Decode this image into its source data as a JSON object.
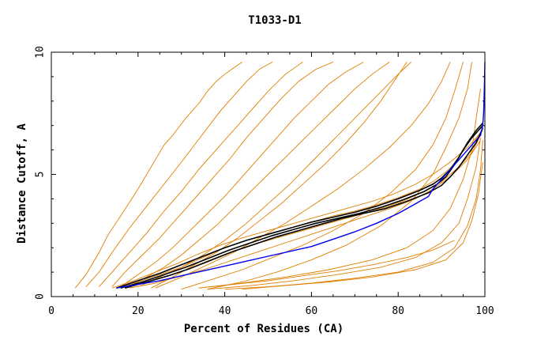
{
  "chart_data": {
    "type": "line",
    "title": "T1033-D1",
    "xlabel": "Percent of Residues (CA)",
    "ylabel": "Distance Cutoff, A",
    "xlim": [
      0,
      100
    ],
    "ylim": [
      0,
      10
    ],
    "xticks": [
      "0",
      "20",
      "40",
      "60",
      "80",
      "100"
    ],
    "yticks": [
      "0",
      "5",
      "10"
    ],
    "grid": false,
    "colors": {
      "orange": "#e07f00",
      "black": "#000000",
      "blue": "#0000ee"
    },
    "series": [
      {
        "name": "orange-fan-a",
        "color": "#e07f00",
        "x": [
          5.5,
          8,
          11,
          13,
          16,
          20,
          23,
          26,
          28,
          31,
          34,
          36,
          38,
          40,
          42,
          44
        ],
        "y": [
          0.35,
          0.9,
          1.8,
          2.5,
          3.3,
          4.4,
          5.3,
          6.2,
          6.6,
          7.3,
          7.9,
          8.4,
          8.8,
          9.1,
          9.35,
          9.6
        ]
      },
      {
        "name": "orange-fan-b",
        "color": "#e07f00",
        "x": [
          8,
          11,
          14,
          18,
          22,
          26,
          30,
          33,
          36,
          39,
          42,
          45,
          48,
          51
        ],
        "y": [
          0.4,
          1.0,
          1.8,
          2.8,
          3.7,
          4.6,
          5.5,
          6.2,
          6.9,
          7.6,
          8.2,
          8.8,
          9.3,
          9.6
        ]
      },
      {
        "name": "orange-fan-c",
        "color": "#e07f00",
        "x": [
          11,
          14,
          18,
          22,
          26,
          30,
          34,
          38,
          42,
          46,
          50,
          54,
          58
        ],
        "y": [
          0.4,
          1.0,
          1.8,
          2.6,
          3.5,
          4.3,
          5.2,
          6.0,
          6.8,
          7.6,
          8.4,
          9.1,
          9.6
        ]
      },
      {
        "name": "orange-fan-d",
        "color": "#e07f00",
        "x": [
          14,
          17,
          21,
          25,
          29,
          33,
          37,
          41,
          45,
          49,
          53,
          57,
          61,
          65
        ],
        "y": [
          0.4,
          1.0,
          1.7,
          2.4,
          3.2,
          4.0,
          4.8,
          5.6,
          6.5,
          7.3,
          8.1,
          8.8,
          9.3,
          9.6
        ]
      },
      {
        "name": "orange-fan-e",
        "color": "#e07f00",
        "x": [
          16,
          20,
          24,
          28,
          32,
          36,
          40,
          44,
          48,
          52,
          56,
          60,
          64,
          68,
          72
        ],
        "y": [
          0.4,
          0.9,
          1.4,
          2.0,
          2.7,
          3.4,
          4.1,
          4.9,
          5.7,
          6.5,
          7.3,
          8.0,
          8.7,
          9.2,
          9.6
        ]
      },
      {
        "name": "orange-fan-f",
        "color": "#e07f00",
        "x": [
          18,
          22,
          26,
          30,
          34,
          38,
          42,
          46,
          50,
          54,
          58,
          62,
          66,
          70,
          74,
          78
        ],
        "y": [
          0.4,
          0.8,
          1.2,
          1.7,
          2.3,
          2.9,
          3.6,
          4.3,
          5.0,
          5.7,
          6.4,
          7.1,
          7.8,
          8.5,
          9.1,
          9.6
        ]
      },
      {
        "name": "orange-fan-g",
        "color": "#e07f00",
        "x": [
          20,
          25,
          30,
          35,
          40,
          45,
          50,
          55,
          60,
          65,
          70,
          75,
          80,
          83
        ],
        "y": [
          0.4,
          0.8,
          1.2,
          1.7,
          2.3,
          3.0,
          3.8,
          4.6,
          5.5,
          6.4,
          7.3,
          8.2,
          9.1,
          9.6
        ]
      },
      {
        "name": "orange-fan-h",
        "color": "#e07f00",
        "x": [
          23,
          28,
          33,
          38,
          43,
          48,
          53,
          58,
          63,
          68,
          72,
          76,
          79,
          82
        ],
        "y": [
          0.35,
          0.8,
          1.3,
          1.8,
          2.4,
          3.1,
          3.8,
          4.6,
          5.4,
          6.3,
          7.1,
          8.0,
          8.8,
          9.6
        ]
      },
      {
        "name": "orange-mid-a",
        "color": "#e07f00",
        "x": [
          24,
          30,
          36,
          42,
          48,
          54,
          60,
          66,
          72,
          78,
          83,
          87,
          90,
          92
        ],
        "y": [
          0.35,
          0.8,
          1.3,
          1.8,
          2.4,
          3.0,
          3.7,
          4.4,
          5.2,
          6.1,
          7.0,
          7.9,
          8.8,
          9.6
        ]
      },
      {
        "name": "orange-mid-b",
        "color": "#e07f00",
        "x": [
          30,
          37,
          44,
          51,
          58,
          65,
          72,
          78,
          84,
          88,
          91,
          93,
          95
        ],
        "y": [
          0.3,
          0.7,
          1.1,
          1.6,
          2.1,
          2.7,
          3.4,
          4.2,
          5.2,
          6.2,
          7.3,
          8.4,
          9.6
        ]
      },
      {
        "name": "orange-mid-c",
        "color": "#e07f00",
        "x": [
          36,
          44,
          52,
          60,
          68,
          76,
          83,
          88,
          91,
          94,
          96,
          97
        ],
        "y": [
          0.3,
          0.6,
          1.0,
          1.5,
          2.1,
          2.9,
          3.9,
          5.0,
          6.1,
          7.3,
          8.5,
          9.6
        ]
      },
      {
        "name": "orange-low-a",
        "color": "#e07f00",
        "x": [
          34,
          44,
          54,
          64,
          74,
          82,
          88,
          92,
          95,
          97,
          98,
          99
        ],
        "y": [
          0.35,
          0.55,
          0.8,
          1.1,
          1.5,
          2.0,
          2.7,
          3.6,
          4.8,
          6.0,
          7.3,
          8.5
        ]
      },
      {
        "name": "orange-low-b",
        "color": "#e07f00",
        "x": [
          36,
          46,
          56,
          66,
          76,
          84,
          90,
          94,
          96,
          98,
          99
        ],
        "y": [
          0.3,
          0.45,
          0.65,
          0.9,
          1.2,
          1.6,
          2.2,
          3.0,
          4.0,
          5.3,
          6.5
        ]
      },
      {
        "name": "orange-low-c",
        "color": "#e07f00",
        "x": [
          40,
          50,
          60,
          70,
          80,
          88,
          93,
          96,
          98,
          99,
          99.5
        ],
        "y": [
          0.3,
          0.4,
          0.55,
          0.75,
          1.0,
          1.4,
          2.0,
          2.9,
          4.0,
          5.2,
          6.4
        ]
      },
      {
        "name": "orange-low-d",
        "color": "#e07f00",
        "x": [
          44,
          54,
          64,
          74,
          84,
          91,
          95,
          97,
          98.5,
          99.5
        ],
        "y": [
          0.3,
          0.45,
          0.6,
          0.8,
          1.1,
          1.5,
          2.2,
          3.1,
          4.2,
          5.5
        ]
      },
      {
        "name": "orange-low-e",
        "color": "#e07f00",
        "x": [
          34,
          42,
          50,
          58,
          66,
          74,
          82,
          88,
          93
        ],
        "y": [
          0.35,
          0.5,
          0.65,
          0.85,
          1.05,
          1.3,
          1.6,
          1.9,
          2.3
        ]
      },
      {
        "name": "orange-bundle-a",
        "color": "#e07f00",
        "x": [
          15,
          20,
          25,
          30,
          35,
          40,
          45,
          50,
          55,
          60,
          65,
          70,
          75,
          80,
          85,
          88,
          91,
          94,
          97,
          99.5
        ],
        "y": [
          0.35,
          0.6,
          0.9,
          1.2,
          1.6,
          2.0,
          2.3,
          2.55,
          2.8,
          3.05,
          3.3,
          3.5,
          3.75,
          4.05,
          4.4,
          4.7,
          5.1,
          5.6,
          6.2,
          6.8
        ]
      },
      {
        "name": "orange-bundle-b",
        "color": "#e07f00",
        "x": [
          16,
          21,
          26,
          31,
          36,
          41,
          46,
          51,
          56,
          61,
          66,
          71,
          76,
          81,
          86,
          90,
          94,
          97,
          99
        ],
        "y": [
          0.35,
          0.55,
          0.8,
          1.1,
          1.45,
          1.8,
          2.1,
          2.35,
          2.6,
          2.85,
          3.1,
          3.35,
          3.6,
          3.9,
          4.3,
          4.7,
          5.3,
          5.9,
          6.6
        ]
      },
      {
        "name": "orange-bundle-c",
        "color": "#e07f00",
        "x": [
          14,
          19,
          24,
          29,
          34,
          39,
          44,
          49,
          54,
          59,
          64,
          69,
          74,
          79,
          84,
          88,
          92,
          96,
          99
        ],
        "y": [
          0.35,
          0.65,
          1.0,
          1.35,
          1.75,
          2.1,
          2.4,
          2.65,
          2.9,
          3.15,
          3.4,
          3.65,
          3.9,
          4.2,
          4.6,
          5.0,
          5.5,
          6.1,
          6.7
        ]
      },
      {
        "name": "orange-bundle-d",
        "color": "#e07f00",
        "x": [
          18,
          24,
          30,
          36,
          42,
          48,
          54,
          60,
          66,
          72,
          78,
          84,
          88,
          92,
          96,
          99
        ],
        "y": [
          0.35,
          0.55,
          0.85,
          1.15,
          1.5,
          1.85,
          2.2,
          2.55,
          2.9,
          3.25,
          3.6,
          4.0,
          4.4,
          4.9,
          5.6,
          6.4
        ]
      },
      {
        "name": "black-a",
        "color": "#000000",
        "x": [
          15,
          20,
          25,
          30,
          35,
          40,
          45,
          50,
          55,
          60,
          65,
          70,
          75,
          80,
          85,
          88,
          90,
          92,
          94,
          96,
          98,
          99.5
        ],
        "y": [
          0.35,
          0.65,
          0.95,
          1.3,
          1.65,
          2.0,
          2.3,
          2.55,
          2.8,
          3.05,
          3.25,
          3.45,
          3.7,
          4.0,
          4.35,
          4.6,
          4.85,
          5.2,
          5.7,
          6.3,
          6.8,
          7.1
        ]
      },
      {
        "name": "black-b",
        "color": "#000000",
        "x": [
          16,
          21,
          26,
          31,
          36,
          41,
          46,
          51,
          56,
          61,
          66,
          71,
          76,
          81,
          86,
          89,
          91,
          93,
          95,
          97,
          99.5
        ],
        "y": [
          0.35,
          0.6,
          0.9,
          1.2,
          1.55,
          1.9,
          2.2,
          2.5,
          2.75,
          3.0,
          3.2,
          3.4,
          3.65,
          3.95,
          4.3,
          4.6,
          4.9,
          5.4,
          6.0,
          6.5,
          7.0
        ]
      },
      {
        "name": "black-c",
        "color": "#000000",
        "x": [
          17,
          22,
          27,
          32,
          37,
          42,
          47,
          52,
          57,
          62,
          67,
          72,
          77,
          82,
          87,
          90,
          92,
          94,
          96,
          98,
          99.5
        ],
        "y": [
          0.35,
          0.6,
          0.85,
          1.15,
          1.5,
          1.85,
          2.15,
          2.45,
          2.7,
          2.95,
          3.2,
          3.4,
          3.6,
          3.9,
          4.25,
          4.55,
          4.9,
          5.3,
          5.8,
          6.3,
          6.9
        ]
      },
      {
        "name": "blue-a",
        "color": "#0000ee",
        "x": [
          15,
          20,
          25,
          30,
          35,
          40,
          45,
          50,
          55,
          60,
          65,
          70,
          75,
          80,
          84,
          87,
          88,
          89,
          90,
          91,
          92,
          93,
          94,
          95,
          96,
          97,
          98,
          99,
          99.5,
          99.7,
          99.8,
          99.9,
          100
        ],
        "y": [
          0.35,
          0.5,
          0.65,
          0.85,
          1.05,
          1.25,
          1.45,
          1.65,
          1.85,
          2.05,
          2.35,
          2.65,
          3.0,
          3.4,
          3.8,
          4.1,
          4.4,
          4.6,
          4.8,
          5.0,
          5.2,
          5.4,
          5.6,
          5.8,
          6.0,
          6.2,
          6.4,
          6.6,
          7.0,
          7.5,
          8.0,
          8.8,
          9.6
        ]
      }
    ]
  }
}
